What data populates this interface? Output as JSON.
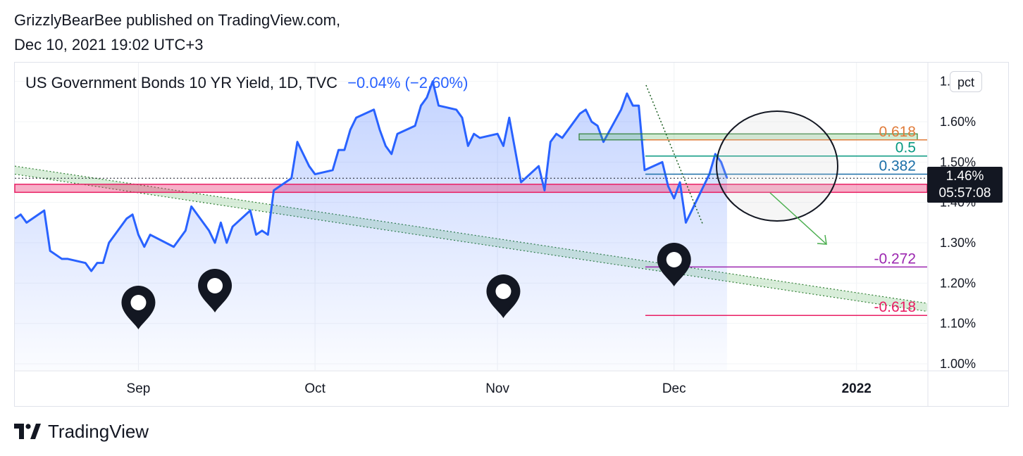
{
  "header": {
    "publisher_line": "GrizzlyBearBee published on TradingView.com,",
    "date_line": "Dec 10, 2021 19:02 UTC+3"
  },
  "legend": {
    "symbol": "US Government Bonds 10 YR Yield, 1D, TVC",
    "change": "−0.04% (−2.60%)"
  },
  "price_scale": {
    "unit_button": "pct",
    "current_price": "1.46%",
    "countdown": "05:57:08"
  },
  "footer": {
    "brand": "TradingView"
  },
  "colors": {
    "line": "#2962ff",
    "fill": "#2962ff",
    "support_band": "#e91e63",
    "trend_channel": "#4caf50",
    "fib_0618": "#e07b39",
    "fib_05": "#089981",
    "fib_0382": "#1b6fa8",
    "fib_neg0272": "#9c27b0",
    "fib_neg0618": "#e91e63",
    "arrow": "#4caf50"
  },
  "chart_data": {
    "type": "line",
    "title": "US Government Bonds 10 YR Yield, 1D, TVC",
    "x_ticks": [
      "Sep",
      "Oct",
      "Nov",
      "Dec",
      "2022"
    ],
    "y_ticks": [
      "1.00%",
      "1.10%",
      "1.20%",
      "1.30%",
      "1.40%",
      "1.50%",
      "1.60%",
      "1.70%"
    ],
    "ylim": [
      1.0,
      1.72
    ],
    "grid": true,
    "x_start": "2021-08-11",
    "x_end": "2022-01-13",
    "series": [
      {
        "values": [
          [
            "2021-08-11",
            1.36
          ],
          [
            "2021-08-12",
            1.37
          ],
          [
            "2021-08-13",
            1.35
          ],
          [
            "2021-08-16",
            1.38
          ],
          [
            "2021-08-17",
            1.28
          ],
          [
            "2021-08-18",
            1.27
          ],
          [
            "2021-08-19",
            1.26
          ],
          [
            "2021-08-20",
            1.26
          ],
          [
            "2021-08-23",
            1.25
          ],
          [
            "2021-08-24",
            1.23
          ],
          [
            "2021-08-25",
            1.25
          ],
          [
            "2021-08-26",
            1.25
          ],
          [
            "2021-08-27",
            1.3
          ],
          [
            "2021-08-30",
            1.36
          ],
          [
            "2021-08-31",
            1.37
          ],
          [
            "2021-09-01",
            1.32
          ],
          [
            "2021-09-02",
            1.29
          ],
          [
            "2021-09-03",
            1.32
          ],
          [
            "2021-09-07",
            1.29
          ],
          [
            "2021-09-08",
            1.31
          ],
          [
            "2021-09-09",
            1.33
          ],
          [
            "2021-09-10",
            1.39
          ],
          [
            "2021-09-13",
            1.33
          ],
          [
            "2021-09-14",
            1.3
          ],
          [
            "2021-09-15",
            1.35
          ],
          [
            "2021-09-16",
            1.3
          ],
          [
            "2021-09-17",
            1.34
          ],
          [
            "2021-09-20",
            1.38
          ],
          [
            "2021-09-21",
            1.32
          ],
          [
            "2021-09-22",
            1.33
          ],
          [
            "2021-09-23",
            1.32
          ],
          [
            "2021-09-24",
            1.43
          ],
          [
            "2021-09-27",
            1.46
          ],
          [
            "2021-09-28",
            1.55
          ],
          [
            "2021-09-29",
            1.52
          ],
          [
            "2021-09-30",
            1.49
          ],
          [
            "2021-10-01",
            1.47
          ],
          [
            "2021-10-04",
            1.48
          ],
          [
            "2021-10-05",
            1.53
          ],
          [
            "2021-10-06",
            1.53
          ],
          [
            "2021-10-07",
            1.58
          ],
          [
            "2021-10-08",
            1.61
          ],
          [
            "2021-10-11",
            1.63
          ],
          [
            "2021-10-12",
            1.58
          ],
          [
            "2021-10-13",
            1.54
          ],
          [
            "2021-10-14",
            1.52
          ],
          [
            "2021-10-15",
            1.57
          ],
          [
            "2021-10-18",
            1.59
          ],
          [
            "2021-10-19",
            1.64
          ],
          [
            "2021-10-20",
            1.66
          ],
          [
            "2021-10-21",
            1.7
          ],
          [
            "2021-10-22",
            1.64
          ],
          [
            "2021-10-25",
            1.63
          ],
          [
            "2021-10-26",
            1.61
          ],
          [
            "2021-10-27",
            1.54
          ],
          [
            "2021-10-28",
            1.57
          ],
          [
            "2021-10-29",
            1.56
          ],
          [
            "2021-11-01",
            1.57
          ],
          [
            "2021-11-02",
            1.54
          ],
          [
            "2021-11-03",
            1.61
          ],
          [
            "2021-11-04",
            1.53
          ],
          [
            "2021-11-05",
            1.45
          ],
          [
            "2021-11-08",
            1.49
          ],
          [
            "2021-11-09",
            1.43
          ],
          [
            "2021-11-10",
            1.55
          ],
          [
            "2021-11-11",
            1.57
          ],
          [
            "2021-11-12",
            1.56
          ],
          [
            "2021-11-15",
            1.62
          ],
          [
            "2021-11-16",
            1.63
          ],
          [
            "2021-11-17",
            1.6
          ],
          [
            "2021-11-18",
            1.59
          ],
          [
            "2021-11-19",
            1.55
          ],
          [
            "2021-11-22",
            1.63
          ],
          [
            "2021-11-23",
            1.67
          ],
          [
            "2021-11-24",
            1.64
          ],
          [
            "2021-11-25",
            1.64
          ],
          [
            "2021-11-26",
            1.48
          ],
          [
            "2021-11-29",
            1.5
          ],
          [
            "2021-11-30",
            1.44
          ],
          [
            "2021-12-01",
            1.41
          ],
          [
            "2021-12-02",
            1.45
          ],
          [
            "2021-12-03",
            1.35
          ],
          [
            "2021-12-06",
            1.44
          ],
          [
            "2021-12-07",
            1.47
          ],
          [
            "2021-12-08",
            1.52
          ],
          [
            "2021-12-09",
            1.5
          ],
          [
            "2021-12-10",
            1.46
          ]
        ]
      }
    ],
    "fib_levels": [
      {
        "label": "0.618",
        "value": 1.555
      },
      {
        "label": "0.5",
        "value": 1.515
      },
      {
        "label": "0.382",
        "value": 1.47
      },
      {
        "label": "-0.272",
        "value": 1.24
      },
      {
        "label": "-0.618",
        "value": 1.12
      }
    ],
    "current_price_line": 1.46,
    "support_band": [
      1.425,
      1.445
    ],
    "resistance_box": [
      1.555,
      1.57
    ],
    "trend_channel": {
      "upper": [
        [
          "2021-08-11",
          1.49
        ],
        [
          "2022-01-13",
          1.15
        ]
      ],
      "lower": [
        [
          "2021-08-11",
          1.47
        ],
        [
          "2022-01-13",
          1.13
        ]
      ]
    },
    "markers": [
      "2021-09-01",
      "2021-09-14",
      "2021-11-02",
      "2021-12-01"
    ]
  }
}
